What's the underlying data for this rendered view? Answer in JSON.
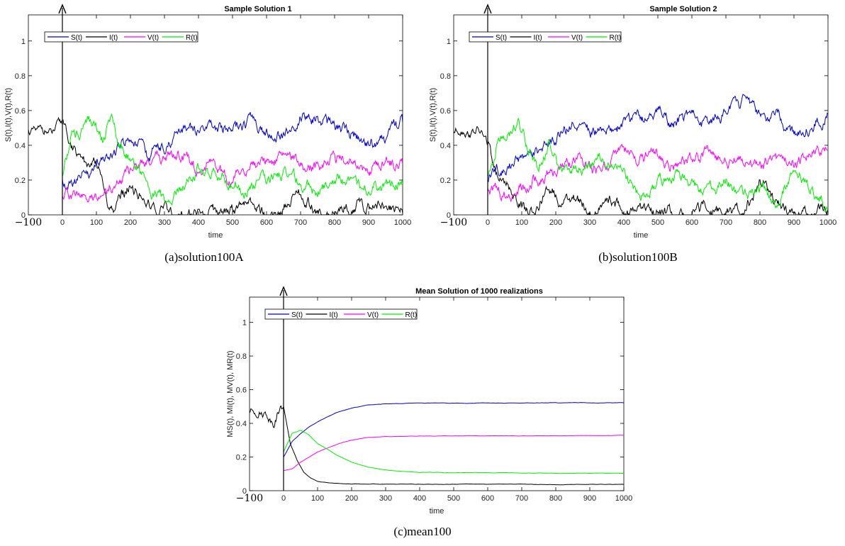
{
  "chart_data": [
    {
      "type": "line",
      "title": "Sample Solution 1",
      "xlabel": "time",
      "ylabel": "S(t),I(t),V(t),R(t)",
      "caption": "(a)solution100A",
      "xlim": [
        -100,
        1000
      ],
      "ylim": [
        0,
        1.15
      ],
      "xticks": [
        0,
        100,
        200,
        300,
        400,
        500,
        600,
        700,
        800,
        900,
        1000
      ],
      "xtick_labels": [
        "0",
        "100",
        "200",
        "300",
        "400",
        "500",
        "600",
        "700",
        "800",
        "900",
        "1000"
      ],
      "neg_tick_label": "−100",
      "yticks": [
        0,
        0.2,
        0.4,
        0.6,
        0.8,
        1
      ],
      "ytick_labels": [
        "0",
        "0.2",
        "0.4",
        "0.6",
        "0.8",
        "1"
      ],
      "legend_position": "top-left",
      "history": {
        "name": "I(t)",
        "x": [
          -100,
          -75,
          -50,
          -30,
          -15,
          0
        ],
        "y": [
          0.48,
          0.47,
          0.49,
          0.46,
          0.5,
          0.52
        ],
        "color": "#000000"
      },
      "series": [
        {
          "name": "S(t)",
          "color": "#0000cc",
          "x": [
            0,
            50,
            100,
            150,
            200,
            250,
            300,
            350,
            400,
            450,
            500,
            550,
            600,
            650,
            700,
            750,
            800,
            850,
            900,
            950,
            1000
          ],
          "y": [
            0.18,
            0.21,
            0.27,
            0.38,
            0.41,
            0.34,
            0.4,
            0.46,
            0.47,
            0.52,
            0.5,
            0.53,
            0.48,
            0.47,
            0.58,
            0.56,
            0.5,
            0.47,
            0.42,
            0.44,
            0.53
          ]
        },
        {
          "name": "I(t)",
          "color": "#000000",
          "x": [
            0,
            50,
            100,
            130,
            150,
            200,
            250,
            300,
            350,
            400,
            450,
            500,
            550,
            600,
            650,
            700,
            750,
            800,
            850,
            900,
            950,
            1000
          ],
          "y": [
            0.52,
            0.3,
            0.29,
            0.1,
            0.02,
            0.18,
            0.1,
            0.02,
            0.01,
            0.01,
            0.02,
            0.02,
            0.06,
            0.0,
            0.05,
            0.1,
            0.02,
            0.03,
            0.06,
            0.05,
            0.08,
            0.01
          ]
        },
        {
          "name": "V(t)",
          "color": "#ff00ff",
          "x": [
            0,
            50,
            100,
            150,
            200,
            250,
            300,
            350,
            400,
            450,
            500,
            550,
            600,
            650,
            700,
            750,
            800,
            850,
            900,
            950,
            1000
          ],
          "y": [
            0.13,
            0.12,
            0.08,
            0.18,
            0.24,
            0.3,
            0.34,
            0.33,
            0.28,
            0.25,
            0.21,
            0.3,
            0.29,
            0.32,
            0.3,
            0.28,
            0.3,
            0.31,
            0.27,
            0.3,
            0.29
          ]
        },
        {
          "name": "R(t)",
          "color": "#00ee00",
          "x": [
            0,
            30,
            60,
            90,
            120,
            145,
            180,
            220,
            260,
            300,
            350,
            400,
            450,
            500,
            550,
            600,
            650,
            700,
            750,
            800,
            850,
            900,
            950,
            1000
          ],
          "y": [
            0.2,
            0.45,
            0.48,
            0.53,
            0.42,
            0.56,
            0.38,
            0.28,
            0.16,
            0.07,
            0.15,
            0.25,
            0.26,
            0.19,
            0.14,
            0.2,
            0.23,
            0.2,
            0.13,
            0.2,
            0.19,
            0.16,
            0.17,
            0.18
          ]
        }
      ]
    },
    {
      "type": "line",
      "title": "Sample Solution 2",
      "xlabel": "time",
      "ylabel": "S(t),I(t),V(t),R(t)",
      "caption": "(b)solution100B",
      "xlim": [
        -100,
        1000
      ],
      "ylim": [
        0,
        1.15
      ],
      "xticks": [
        0,
        100,
        200,
        300,
        400,
        500,
        600,
        700,
        800,
        900,
        1000
      ],
      "xtick_labels": [
        "0",
        "100",
        "200",
        "300",
        "400",
        "500",
        "600",
        "700",
        "800",
        "900",
        "1000"
      ],
      "neg_tick_label": "−100",
      "yticks": [
        0,
        0.2,
        0.4,
        0.6,
        0.8,
        1
      ],
      "ytick_labels": [
        "0",
        "0.2",
        "0.4",
        "0.6",
        "0.8",
        "1"
      ],
      "legend_position": "top-left",
      "history": {
        "name": "I(t)",
        "x": [
          -100,
          -75,
          -50,
          -30,
          -15,
          0
        ],
        "y": [
          0.48,
          0.5,
          0.47,
          0.49,
          0.46,
          0.4
        ],
        "color": "#000000"
      },
      "series": [
        {
          "name": "S(t)",
          "color": "#0000cc",
          "x": [
            0,
            50,
            100,
            150,
            200,
            250,
            300,
            350,
            400,
            450,
            500,
            550,
            600,
            650,
            700,
            750,
            800,
            850,
            900,
            950,
            1000
          ],
          "y": [
            0.22,
            0.28,
            0.32,
            0.37,
            0.45,
            0.5,
            0.46,
            0.52,
            0.51,
            0.55,
            0.58,
            0.52,
            0.57,
            0.5,
            0.6,
            0.64,
            0.55,
            0.6,
            0.45,
            0.52,
            0.58
          ]
        },
        {
          "name": "I(t)",
          "color": "#000000",
          "x": [
            0,
            30,
            60,
            90,
            120,
            150,
            180,
            210,
            250,
            300,
            350,
            400,
            450,
            500,
            550,
            600,
            650,
            700,
            750,
            800,
            850,
            900,
            950,
            1000
          ],
          "y": [
            0.4,
            0.2,
            0.15,
            0.06,
            0.01,
            0.06,
            0.17,
            0.08,
            0.1,
            0.03,
            0.08,
            0.02,
            0.01,
            0.02,
            0.01,
            0.01,
            0.05,
            0.0,
            0.01,
            0.19,
            0.06,
            0.02,
            0.01,
            0.03
          ]
        },
        {
          "name": "V(t)",
          "color": "#ff00ff",
          "x": [
            0,
            50,
            100,
            150,
            200,
            250,
            300,
            350,
            400,
            450,
            500,
            550,
            600,
            650,
            700,
            750,
            800,
            850,
            900,
            950,
            1000
          ],
          "y": [
            0.17,
            0.11,
            0.16,
            0.22,
            0.27,
            0.31,
            0.25,
            0.26,
            0.38,
            0.33,
            0.35,
            0.29,
            0.33,
            0.34,
            0.3,
            0.32,
            0.27,
            0.33,
            0.29,
            0.34,
            0.37
          ]
        },
        {
          "name": "R(t)",
          "color": "#00ee00",
          "x": [
            0,
            30,
            60,
            90,
            120,
            150,
            180,
            220,
            260,
            300,
            350,
            400,
            450,
            500,
            550,
            600,
            650,
            700,
            750,
            800,
            850,
            900,
            950,
            1000
          ],
          "y": [
            0.22,
            0.44,
            0.46,
            0.53,
            0.4,
            0.32,
            0.4,
            0.28,
            0.26,
            0.29,
            0.31,
            0.24,
            0.13,
            0.18,
            0.24,
            0.16,
            0.11,
            0.2,
            0.08,
            0.14,
            0.07,
            0.24,
            0.15,
            0.04
          ]
        }
      ]
    },
    {
      "type": "line",
      "title": "Mean Solution of 1000 realizations",
      "xlabel": "time",
      "ylabel": "MS(t), MI(t), MV(t), MR(t)",
      "caption": "(c)mean100",
      "xlim": [
        -100,
        1000
      ],
      "ylim": [
        0,
        1.15
      ],
      "xticks": [
        0,
        100,
        200,
        300,
        400,
        500,
        600,
        700,
        800,
        900,
        1000
      ],
      "xtick_labels": [
        "0",
        "100",
        "200",
        "300",
        "400",
        "500",
        "600",
        "700",
        "800",
        "900",
        "1000"
      ],
      "neg_tick_label": "−100",
      "yticks": [
        0,
        0.2,
        0.4,
        0.6,
        0.8,
        1
      ],
      "ytick_labels": [
        "0",
        "0.2",
        "0.4",
        "0.6",
        "0.8",
        "1"
      ],
      "legend_position": "top-left",
      "history": {
        "name": "I(t)",
        "x": [
          -100,
          -75,
          -50,
          -30,
          -15,
          0
        ],
        "y": [
          0.47,
          0.48,
          0.46,
          0.41,
          0.48,
          0.5
        ],
        "color": "#000000"
      },
      "series": [
        {
          "name": "S(t)",
          "color": "#0000cc",
          "x": [
            0,
            25,
            50,
            75,
            100,
            150,
            200,
            250,
            300,
            400,
            500,
            600,
            700,
            800,
            900,
            1000
          ],
          "y": [
            0.2,
            0.29,
            0.34,
            0.38,
            0.41,
            0.46,
            0.49,
            0.51,
            0.515,
            0.52,
            0.52,
            0.52,
            0.522,
            0.522,
            0.522,
            0.522
          ]
        },
        {
          "name": "I(t)",
          "color": "#000000",
          "x": [
            0,
            20,
            40,
            60,
            80,
            100,
            150,
            200,
            300,
            400,
            500,
            600,
            700,
            800,
            900,
            1000
          ],
          "y": [
            0.5,
            0.28,
            0.18,
            0.11,
            0.075,
            0.055,
            0.045,
            0.04,
            0.04,
            0.038,
            0.038,
            0.038,
            0.038,
            0.037,
            0.038,
            0.037
          ]
        },
        {
          "name": "V(t)",
          "color": "#ff00ff",
          "x": [
            0,
            25,
            50,
            100,
            150,
            200,
            250,
            300,
            350,
            400,
            500,
            600,
            700,
            800,
            900,
            1000
          ],
          "y": [
            0.12,
            0.13,
            0.17,
            0.23,
            0.27,
            0.3,
            0.315,
            0.32,
            0.322,
            0.325,
            0.325,
            0.327,
            0.327,
            0.328,
            0.328,
            0.328
          ]
        },
        {
          "name": "R(t)",
          "color": "#00ee00",
          "x": [
            0,
            25,
            50,
            75,
            100,
            150,
            200,
            250,
            300,
            350,
            400,
            500,
            600,
            700,
            800,
            900,
            1000
          ],
          "y": [
            0.23,
            0.34,
            0.36,
            0.33,
            0.28,
            0.22,
            0.17,
            0.14,
            0.125,
            0.115,
            0.11,
            0.108,
            0.106,
            0.105,
            0.104,
            0.104,
            0.103
          ]
        }
      ]
    }
  ]
}
